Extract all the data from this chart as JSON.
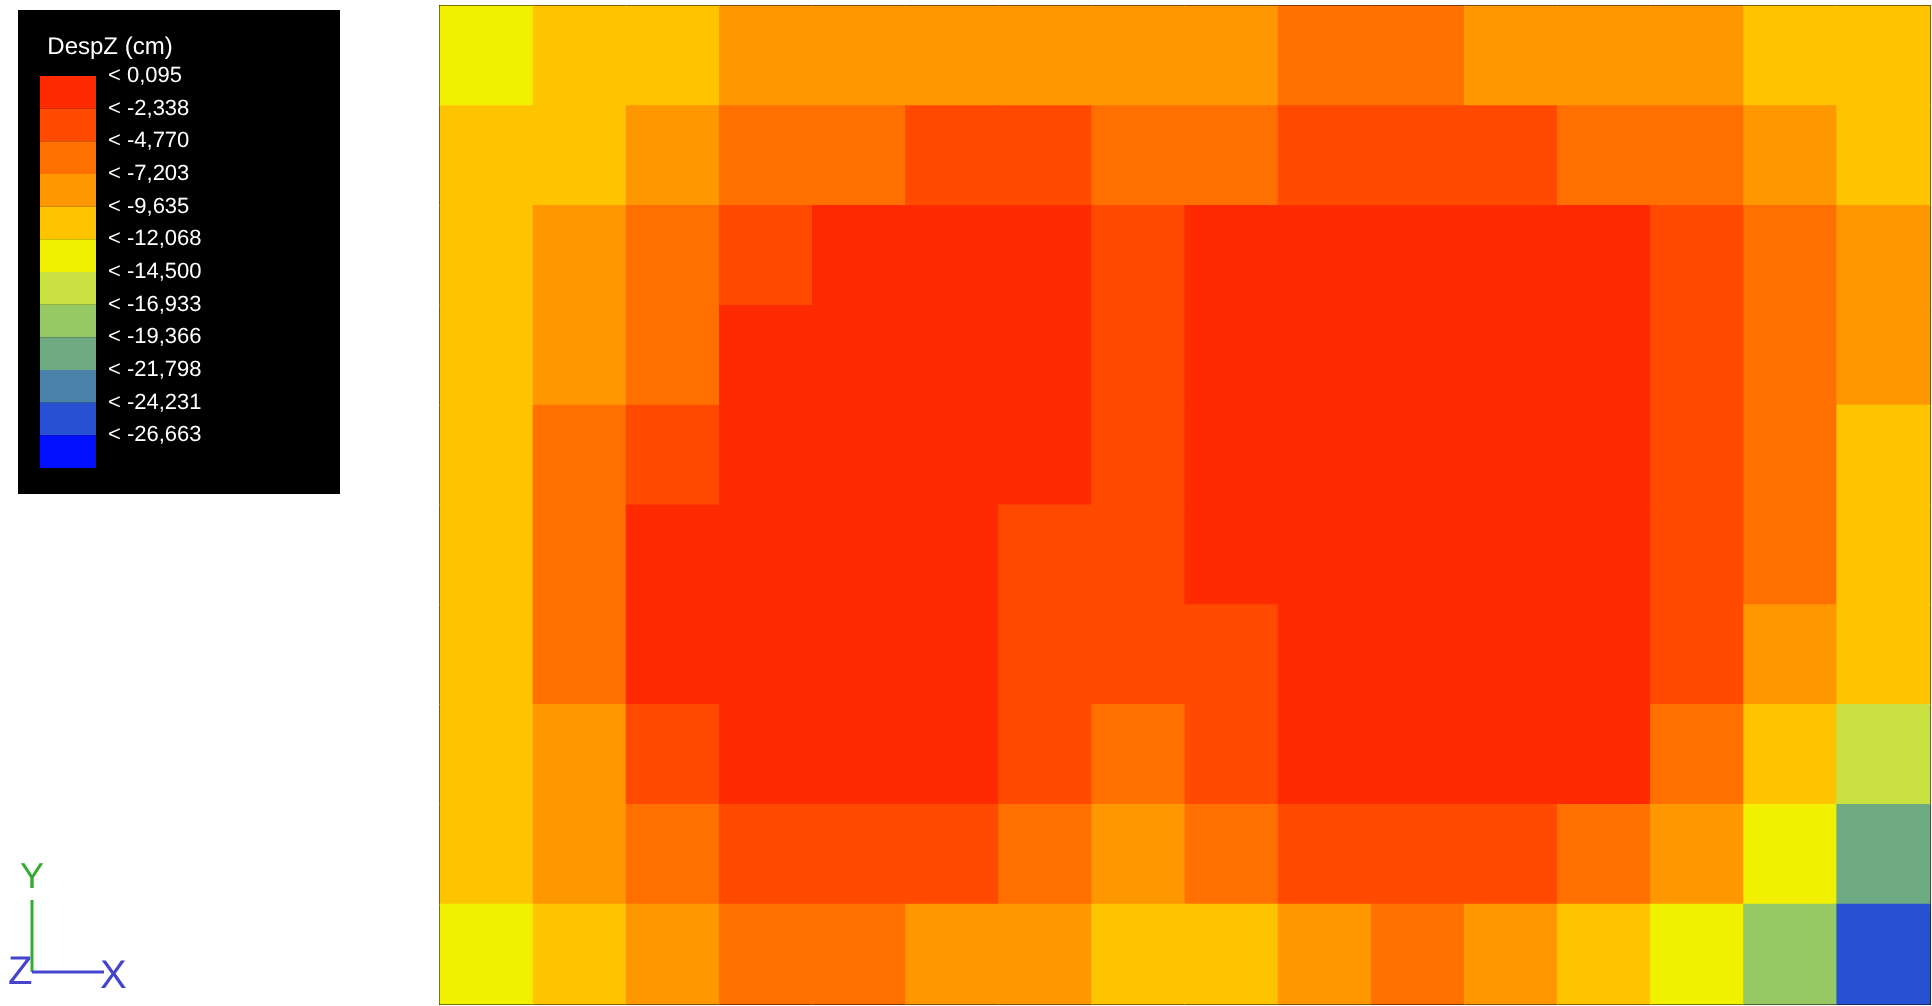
{
  "chart_data": {
    "type": "heatmap",
    "clabel": "DespZ (cm)",
    "annotations": [
      "Y",
      "Z",
      "X"
    ],
    "categories": [
      null,
      null,
      null,
      null,
      null,
      null,
      null,
      null,
      null,
      null,
      null,
      null,
      null,
      null,
      null,
      null
    ],
    "y_categories": [
      null,
      null,
      null,
      null,
      null,
      null,
      null,
      null,
      null,
      null
    ],
    "cells": [
      [
        -13,
        -11.5,
        -10,
        -9,
        -8,
        -7.5,
        -7.5,
        -8,
        -7.5,
        -7,
        -7,
        -7.5,
        -8,
        -9,
        -10,
        -11.5
      ],
      [
        -12,
        -10,
        -8,
        -6.5,
        -5,
        -4.5,
        -4.5,
        -6,
        -5,
        -4,
        -4,
        -4.5,
        -5,
        -6.5,
        -8.5,
        -10
      ],
      [
        -11,
        -8.5,
        -6,
        -3.5,
        -1,
        -1,
        -2,
        -4,
        -2,
        -1,
        -1,
        -1,
        -1,
        -4,
        -7,
        -9.5
      ],
      [
        -10.5,
        -7.5,
        -5,
        -1,
        -1,
        -1,
        -1,
        -3.5,
        -1,
        -1,
        -1,
        -1,
        -1,
        -3,
        -6.5,
        -9.5
      ],
      [
        -10,
        -7,
        -3.5,
        -1,
        -1,
        -1,
        -1.5,
        -3,
        -1.5,
        -1,
        -1,
        -1,
        -1,
        -3,
        -6.5,
        -10
      ],
      [
        -10,
        -6.5,
        -1,
        -1,
        -1,
        -1,
        -2.5,
        -3.5,
        -2,
        -1,
        -1,
        -1,
        -1,
        -3.5,
        -7,
        -11
      ],
      [
        -10.5,
        -7,
        -1.5,
        -1,
        -1,
        -1,
        -3,
        -4,
        -3.5,
        -1,
        -1,
        -1,
        -1,
        -4,
        -8,
        -12
      ],
      [
        -11,
        -7.5,
        -3,
        -1,
        -1,
        -1.5,
        -4.5,
        -6,
        -4.5,
        -1.5,
        -1,
        -1,
        -2,
        -5.5,
        -10,
        -15
      ],
      [
        -12,
        -9,
        -5.5,
        -3.5,
        -3.5,
        -4.5,
        -7,
        -8,
        -7,
        -4.5,
        -3.5,
        -4,
        -6,
        -9,
        -14,
        -20
      ],
      [
        -13,
        -11,
        -8.5,
        -7,
        -7,
        -8,
        -9.5,
        -10.5,
        -10,
        -8,
        -7,
        -8,
        -10,
        -14,
        -19,
        -25
      ]
    ],
    "clim": [
      -29.096,
      0.095
    ],
    "cticks": [
      {
        "value": 0.095,
        "label": "< 0,095"
      },
      {
        "value": -2.338,
        "label": "< -2,338"
      },
      {
        "value": -4.77,
        "label": "< -4,770"
      },
      {
        "value": -7.203,
        "label": "< -7,203"
      },
      {
        "value": -9.635,
        "label": "< -9,635"
      },
      {
        "value": -12.068,
        "label": "< -12,068"
      },
      {
        "value": -14.5,
        "label": "< -14,500"
      },
      {
        "value": -16.933,
        "label": "< -16,933"
      },
      {
        "value": -19.366,
        "label": "< -19,366"
      },
      {
        "value": -21.798,
        "label": "< -21,798"
      },
      {
        "value": -24.231,
        "label": "< -24,231"
      },
      {
        "value": -26.663,
        "label": "< -26,663"
      }
    ],
    "colors": [
      "#ff2a00",
      "#ff4a00",
      "#ff7000",
      "#ff9800",
      "#ffc400",
      "#f0f000",
      "#c8e040",
      "#96c864",
      "#6eaa82",
      "#4a82aa",
      "#2850d2",
      "#0010ff"
    ]
  }
}
